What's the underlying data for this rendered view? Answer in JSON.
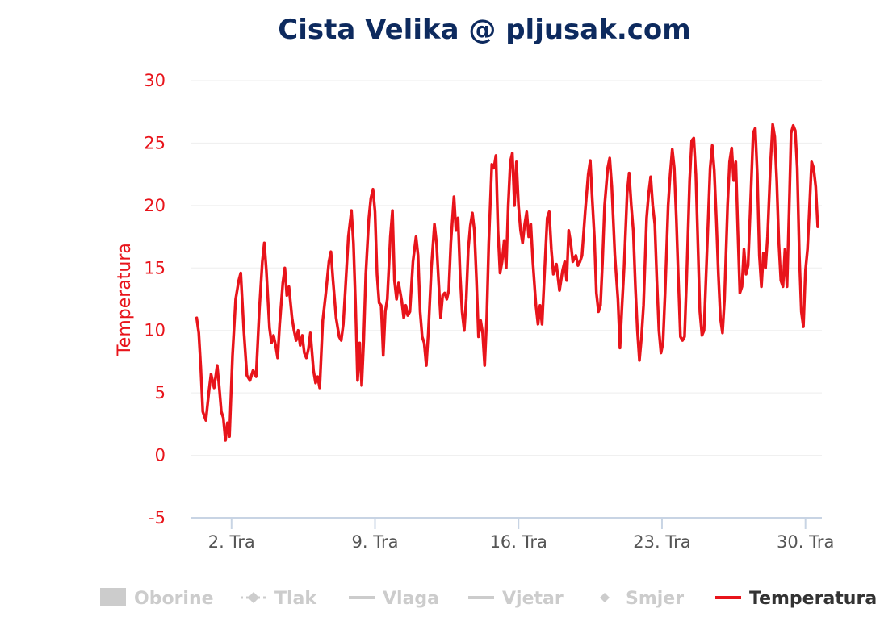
{
  "chart_data": {
    "type": "line",
    "title": "Cista Velika @ pljusak.com",
    "ylabel": "Temperatura",
    "xlabel": "",
    "ylim": [
      -5,
      30
    ],
    "yticks": [
      -5,
      0,
      5,
      10,
      15,
      20,
      25,
      30
    ],
    "xlim": [
      0.0,
      30.8
    ],
    "xticks": [
      {
        "value": 2,
        "label": "2. Tra"
      },
      {
        "value": 9,
        "label": "9. Tra"
      },
      {
        "value": 16,
        "label": "16. Tra"
      },
      {
        "value": 23,
        "label": "23. Tra"
      },
      {
        "value": 30,
        "label": "30. Tra"
      }
    ],
    "grid": true,
    "legend_position": "bottom",
    "colors": {
      "title": "#0d2a5e",
      "axis_text": "#e8141b",
      "series": "#e8141b",
      "grid": "#eeeeee",
      "axis_line": "#c8d4e4",
      "legend_inactive": "#cccccc",
      "legend_active_text": "#333333"
    },
    "legend": [
      {
        "label": "Oborine",
        "symbol": "rect",
        "active": false
      },
      {
        "label": "Tlak",
        "symbol": "dashed-diamond",
        "active": false
      },
      {
        "label": "Vlaga",
        "symbol": "line",
        "active": false
      },
      {
        "label": "Vjetar",
        "symbol": "line",
        "active": false
      },
      {
        "label": "Smjer",
        "symbol": "diamond",
        "active": false
      },
      {
        "label": "Temperatura",
        "symbol": "line",
        "active": true
      }
    ],
    "series": [
      {
        "name": "Temperatura",
        "points": [
          [
            0.3,
            11.0
          ],
          [
            0.4,
            9.8
          ],
          [
            0.5,
            7.0
          ],
          [
            0.6,
            3.5
          ],
          [
            0.75,
            2.8
          ],
          [
            0.9,
            5.2
          ],
          [
            1.0,
            6.5
          ],
          [
            1.15,
            5.4
          ],
          [
            1.3,
            7.2
          ],
          [
            1.4,
            5.5
          ],
          [
            1.5,
            3.5
          ],
          [
            1.6,
            3.0
          ],
          [
            1.7,
            1.2
          ],
          [
            1.8,
            2.6
          ],
          [
            1.9,
            1.5
          ],
          [
            2.05,
            8.0
          ],
          [
            2.2,
            12.5
          ],
          [
            2.35,
            14.0
          ],
          [
            2.45,
            14.6
          ],
          [
            2.6,
            10.0
          ],
          [
            2.75,
            6.4
          ],
          [
            2.9,
            6.0
          ],
          [
            3.05,
            6.8
          ],
          [
            3.2,
            6.3
          ],
          [
            3.35,
            11.5
          ],
          [
            3.5,
            15.5
          ],
          [
            3.6,
            17.0
          ],
          [
            3.7,
            14.8
          ],
          [
            3.85,
            10.2
          ],
          [
            3.95,
            9.0
          ],
          [
            4.05,
            9.6
          ],
          [
            4.15,
            8.8
          ],
          [
            4.25,
            7.8
          ],
          [
            4.35,
            10.5
          ],
          [
            4.5,
            13.8
          ],
          [
            4.6,
            15.0
          ],
          [
            4.7,
            12.8
          ],
          [
            4.8,
            13.5
          ],
          [
            4.95,
            11.0
          ],
          [
            5.05,
            10.0
          ],
          [
            5.15,
            9.2
          ],
          [
            5.25,
            10.0
          ],
          [
            5.35,
            8.8
          ],
          [
            5.45,
            9.6
          ],
          [
            5.55,
            8.2
          ],
          [
            5.65,
            7.8
          ],
          [
            5.75,
            8.5
          ],
          [
            5.85,
            9.8
          ],
          [
            6.0,
            6.8
          ],
          [
            6.1,
            5.8
          ],
          [
            6.2,
            6.3
          ],
          [
            6.3,
            5.4
          ],
          [
            6.45,
            10.8
          ],
          [
            6.6,
            13.0
          ],
          [
            6.75,
            15.5
          ],
          [
            6.85,
            16.3
          ],
          [
            6.95,
            14.0
          ],
          [
            7.1,
            11.0
          ],
          [
            7.25,
            9.5
          ],
          [
            7.35,
            9.2
          ],
          [
            7.45,
            10.5
          ],
          [
            7.55,
            13.2
          ],
          [
            7.7,
            17.5
          ],
          [
            7.85,
            19.6
          ],
          [
            7.95,
            17.0
          ],
          [
            8.05,
            12.0
          ],
          [
            8.15,
            6.0
          ],
          [
            8.25,
            9.0
          ],
          [
            8.35,
            5.6
          ],
          [
            8.45,
            9.2
          ],
          [
            8.55,
            14.5
          ],
          [
            8.7,
            19.0
          ],
          [
            8.8,
            20.6
          ],
          [
            8.9,
            21.3
          ],
          [
            9.0,
            19.5
          ],
          [
            9.1,
            14.5
          ],
          [
            9.2,
            12.2
          ],
          [
            9.3,
            12.0
          ],
          [
            9.4,
            8.0
          ],
          [
            9.5,
            11.5
          ],
          [
            9.6,
            12.5
          ],
          [
            9.75,
            17.5
          ],
          [
            9.85,
            19.6
          ],
          [
            9.95,
            14.0
          ],
          [
            10.05,
            12.5
          ],
          [
            10.15,
            13.8
          ],
          [
            10.3,
            12.4
          ],
          [
            10.4,
            11.0
          ],
          [
            10.5,
            12.0
          ],
          [
            10.6,
            11.2
          ],
          [
            10.7,
            11.5
          ],
          [
            10.85,
            15.5
          ],
          [
            11.0,
            17.5
          ],
          [
            11.1,
            16.0
          ],
          [
            11.2,
            11.5
          ],
          [
            11.3,
            9.5
          ],
          [
            11.4,
            9.0
          ],
          [
            11.5,
            7.2
          ],
          [
            11.6,
            9.8
          ],
          [
            11.75,
            15.0
          ],
          [
            11.9,
            18.5
          ],
          [
            12.0,
            17.0
          ],
          [
            12.1,
            14.0
          ],
          [
            12.2,
            11.0
          ],
          [
            12.3,
            12.8
          ],
          [
            12.4,
            13.0
          ],
          [
            12.5,
            12.5
          ],
          [
            12.6,
            13.2
          ],
          [
            12.7,
            17.0
          ],
          [
            12.85,
            20.7
          ],
          [
            12.95,
            18.0
          ],
          [
            13.05,
            19.0
          ],
          [
            13.15,
            14.5
          ],
          [
            13.25,
            11.5
          ],
          [
            13.35,
            10.0
          ],
          [
            13.45,
            12.5
          ],
          [
            13.55,
            16.5
          ],
          [
            13.65,
            18.4
          ],
          [
            13.75,
            19.4
          ],
          [
            13.85,
            18.0
          ],
          [
            13.95,
            14.0
          ],
          [
            14.05,
            9.5
          ],
          [
            14.15,
            10.8
          ],
          [
            14.25,
            9.8
          ],
          [
            14.35,
            7.2
          ],
          [
            14.45,
            11.0
          ],
          [
            14.55,
            17.0
          ],
          [
            14.7,
            23.3
          ],
          [
            14.8,
            23.0
          ],
          [
            14.9,
            24.0
          ],
          [
            15.0,
            18.0
          ],
          [
            15.1,
            14.6
          ],
          [
            15.2,
            15.5
          ],
          [
            15.3,
            17.2
          ],
          [
            15.4,
            15.0
          ],
          [
            15.5,
            20.0
          ],
          [
            15.6,
            23.5
          ],
          [
            15.7,
            24.2
          ],
          [
            15.8,
            20.0
          ],
          [
            15.9,
            23.5
          ],
          [
            16.0,
            20.0
          ],
          [
            16.1,
            18.0
          ],
          [
            16.2,
            17.0
          ],
          [
            16.3,
            18.5
          ],
          [
            16.4,
            19.5
          ],
          [
            16.5,
            17.5
          ],
          [
            16.6,
            18.5
          ],
          [
            16.7,
            15.5
          ],
          [
            16.85,
            12.0
          ],
          [
            16.95,
            10.5
          ],
          [
            17.05,
            12.0
          ],
          [
            17.15,
            10.5
          ],
          [
            17.25,
            14.0
          ],
          [
            17.4,
            19.0
          ],
          [
            17.5,
            19.5
          ],
          [
            17.6,
            16.5
          ],
          [
            17.7,
            14.5
          ],
          [
            17.85,
            15.3
          ],
          [
            18.0,
            13.2
          ],
          [
            18.15,
            14.8
          ],
          [
            18.25,
            15.5
          ],
          [
            18.35,
            14.0
          ],
          [
            18.45,
            18.0
          ],
          [
            18.55,
            17.0
          ],
          [
            18.65,
            15.5
          ],
          [
            18.8,
            16.0
          ],
          [
            18.9,
            15.2
          ],
          [
            19.0,
            15.5
          ],
          [
            19.1,
            16.0
          ],
          [
            19.25,
            19.5
          ],
          [
            19.4,
            22.5
          ],
          [
            19.5,
            23.6
          ],
          [
            19.6,
            20.5
          ],
          [
            19.7,
            17.5
          ],
          [
            19.8,
            13.0
          ],
          [
            19.9,
            11.5
          ],
          [
            20.0,
            12.0
          ],
          [
            20.1,
            15.5
          ],
          [
            20.2,
            20.0
          ],
          [
            20.35,
            23.0
          ],
          [
            20.45,
            23.8
          ],
          [
            20.55,
            21.5
          ],
          [
            20.7,
            16.0
          ],
          [
            20.85,
            12.5
          ],
          [
            20.95,
            8.6
          ],
          [
            21.05,
            12.0
          ],
          [
            21.15,
            15.0
          ],
          [
            21.3,
            21.0
          ],
          [
            21.4,
            22.6
          ],
          [
            21.5,
            20.0
          ],
          [
            21.6,
            18.0
          ],
          [
            21.7,
            13.5
          ],
          [
            21.8,
            10.0
          ],
          [
            21.9,
            7.6
          ],
          [
            22.0,
            9.5
          ],
          [
            22.1,
            12.0
          ],
          [
            22.25,
            19.0
          ],
          [
            22.35,
            21.0
          ],
          [
            22.45,
            22.3
          ],
          [
            22.55,
            20.0
          ],
          [
            22.65,
            18.5
          ],
          [
            22.75,
            14.0
          ],
          [
            22.85,
            10.0
          ],
          [
            22.95,
            8.2
          ],
          [
            23.05,
            9.0
          ],
          [
            23.15,
            13.0
          ],
          [
            23.3,
            20.0
          ],
          [
            23.4,
            22.5
          ],
          [
            23.5,
            24.5
          ],
          [
            23.6,
            23.0
          ],
          [
            23.7,
            19.0
          ],
          [
            23.8,
            14.0
          ],
          [
            23.9,
            9.5
          ],
          [
            24.0,
            9.2
          ],
          [
            24.1,
            9.5
          ],
          [
            24.2,
            14.0
          ],
          [
            24.35,
            22.0
          ],
          [
            24.45,
            25.2
          ],
          [
            24.55,
            25.4
          ],
          [
            24.65,
            22.5
          ],
          [
            24.75,
            17.0
          ],
          [
            24.85,
            11.5
          ],
          [
            24.95,
            9.6
          ],
          [
            25.05,
            10.0
          ],
          [
            25.2,
            16.5
          ],
          [
            25.35,
            23.0
          ],
          [
            25.45,
            24.8
          ],
          [
            25.55,
            22.8
          ],
          [
            25.65,
            19.0
          ],
          [
            25.75,
            14.5
          ],
          [
            25.85,
            11.0
          ],
          [
            25.95,
            9.8
          ],
          [
            26.05,
            12.5
          ],
          [
            26.2,
            20.0
          ],
          [
            26.3,
            23.5
          ],
          [
            26.4,
            24.6
          ],
          [
            26.5,
            22.0
          ],
          [
            26.6,
            23.5
          ],
          [
            26.7,
            18.0
          ],
          [
            26.8,
            13.0
          ],
          [
            26.9,
            13.5
          ],
          [
            27.0,
            16.5
          ],
          [
            27.1,
            14.5
          ],
          [
            27.2,
            15.2
          ],
          [
            27.35,
            21.5
          ],
          [
            27.45,
            25.8
          ],
          [
            27.55,
            26.2
          ],
          [
            27.65,
            22.5
          ],
          [
            27.75,
            16.0
          ],
          [
            27.85,
            13.5
          ],
          [
            27.95,
            16.2
          ],
          [
            28.05,
            15.0
          ],
          [
            28.15,
            17.5
          ],
          [
            28.3,
            23.5
          ],
          [
            28.4,
            26.5
          ],
          [
            28.5,
            25.5
          ],
          [
            28.6,
            22.0
          ],
          [
            28.7,
            17.0
          ],
          [
            28.8,
            14.0
          ],
          [
            28.9,
            13.5
          ],
          [
            29.0,
            16.5
          ],
          [
            29.1,
            13.5
          ],
          [
            29.2,
            19.5
          ],
          [
            29.3,
            25.8
          ],
          [
            29.4,
            26.4
          ],
          [
            29.5,
            26.0
          ],
          [
            29.6,
            23.0
          ],
          [
            29.7,
            16.0
          ],
          [
            29.8,
            11.5
          ],
          [
            29.9,
            10.3
          ],
          [
            30.0,
            14.8
          ],
          [
            30.1,
            16.5
          ],
          [
            30.2,
            20.0
          ],
          [
            30.3,
            23.5
          ],
          [
            30.4,
            23.0
          ],
          [
            30.5,
            21.5
          ],
          [
            30.6,
            18.3
          ]
        ]
      }
    ]
  }
}
